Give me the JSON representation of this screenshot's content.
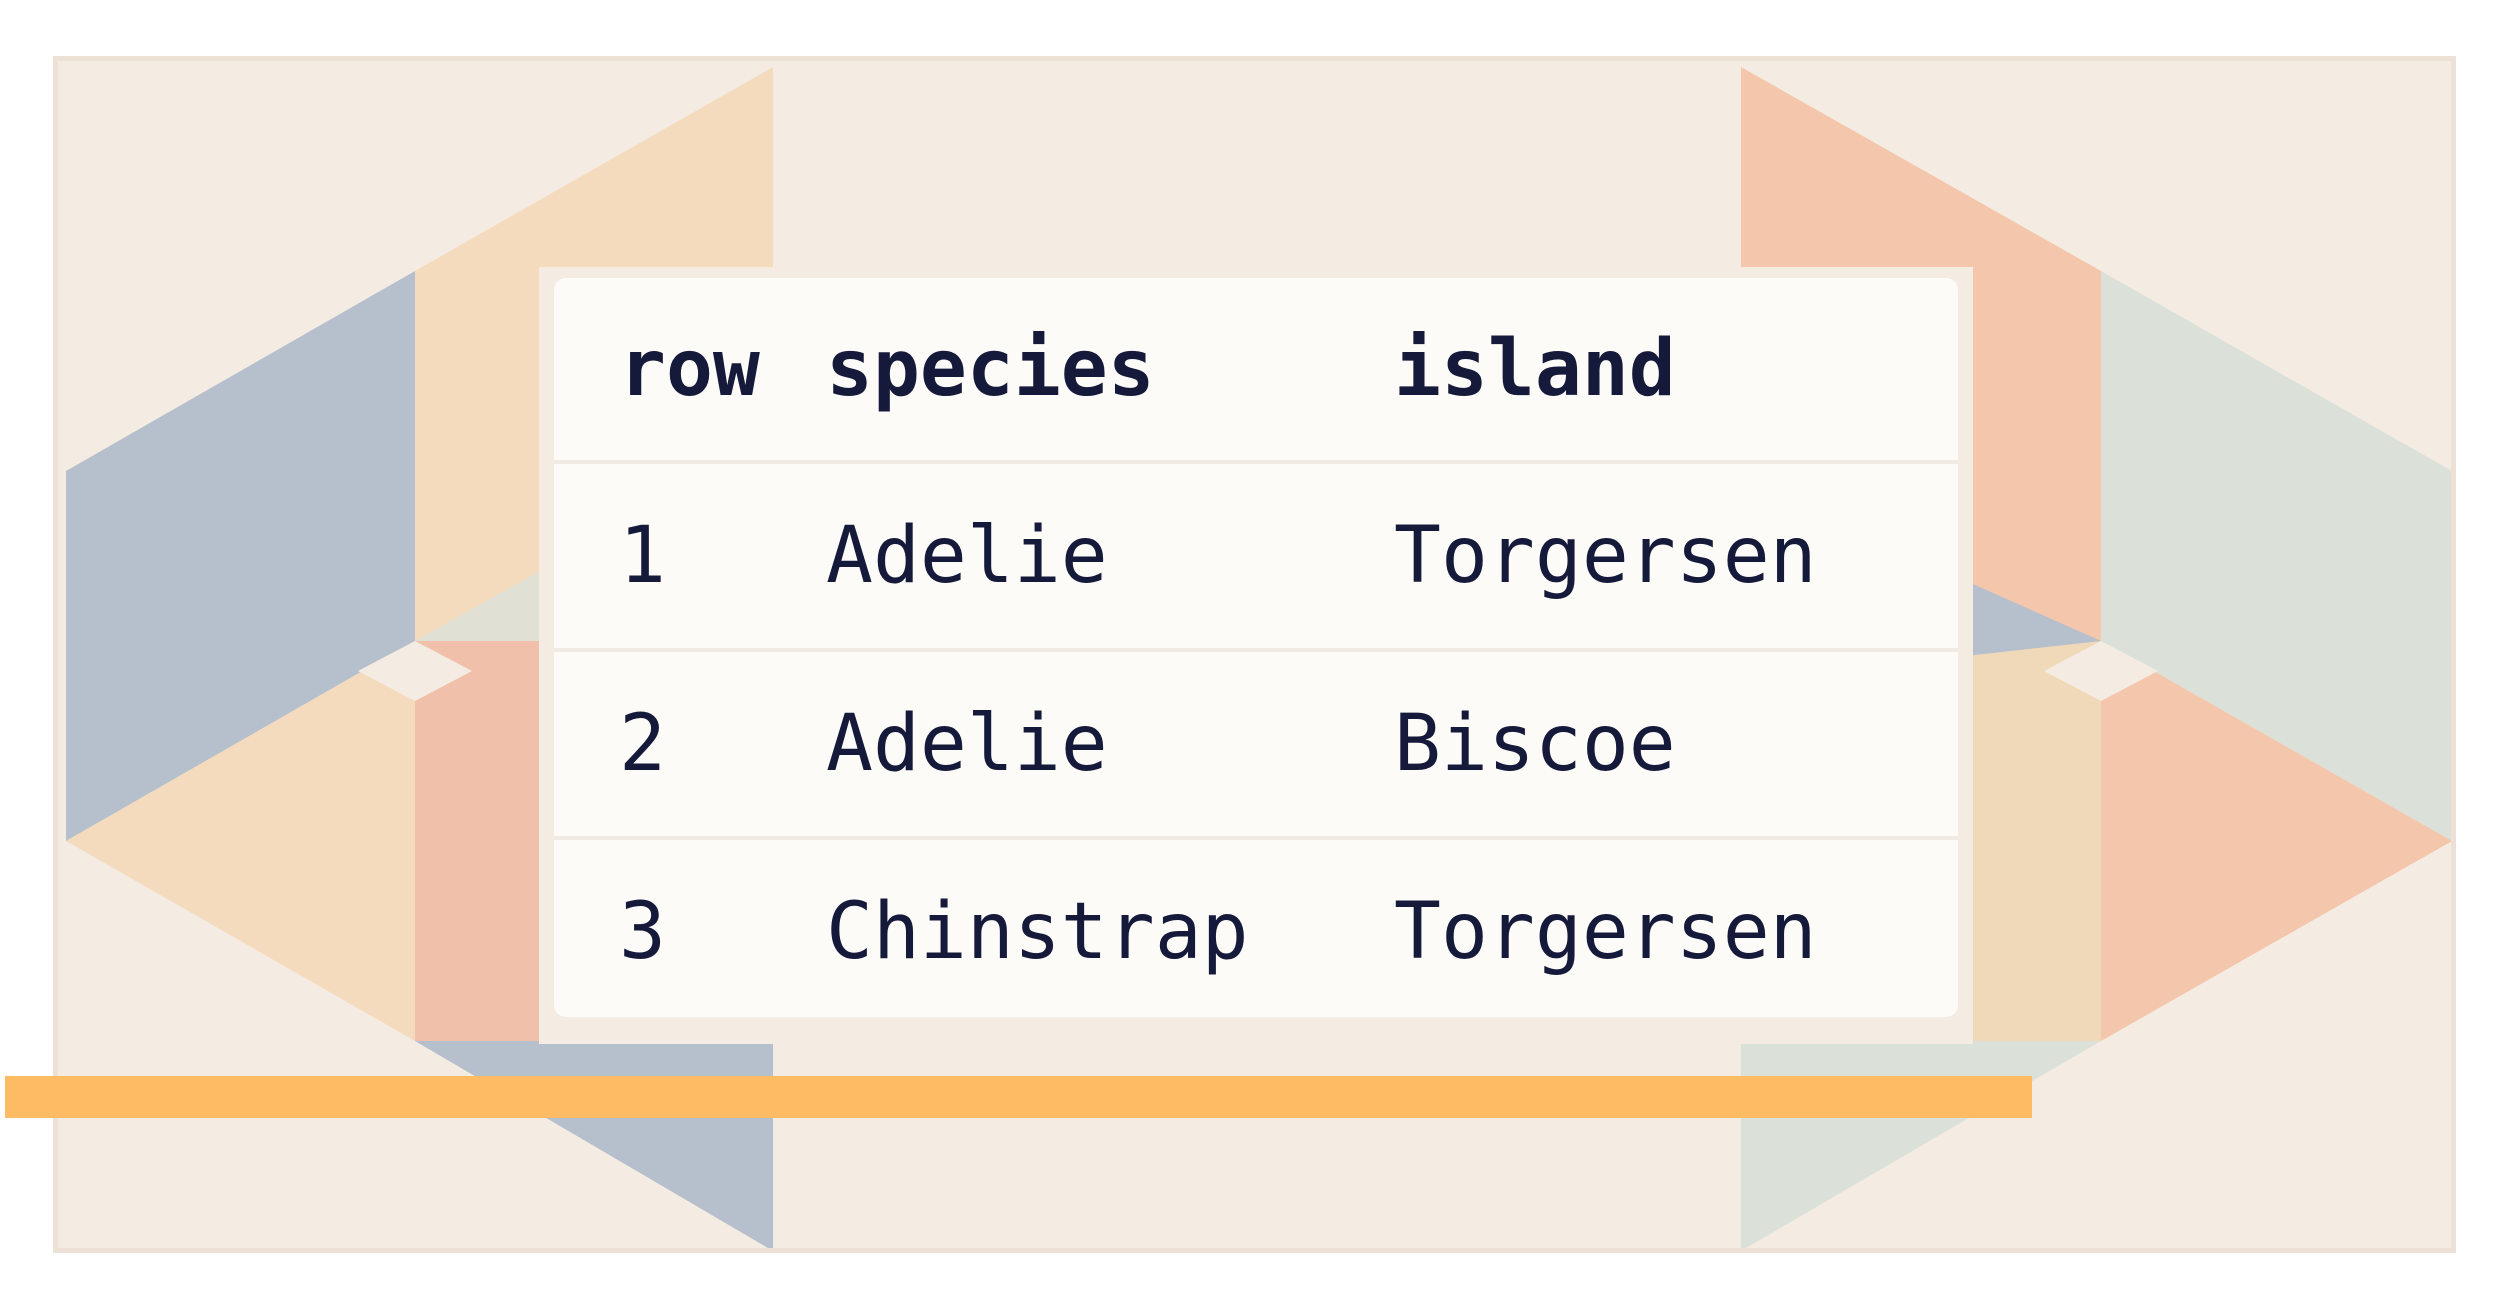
{
  "colors": {
    "frame_bg": "#f4ece2",
    "slate": "#b6bfcc",
    "peach": "#f4dbbe",
    "salmon": "#f4c6ab",
    "sage": "#dbe1d9",
    "table_bg": "#fcfbf8",
    "text": "#15193a",
    "accent_bar": "#fdbb63"
  },
  "table": {
    "columns": [
      "row",
      "species",
      "island"
    ],
    "rows": [
      [
        "1",
        "Adelie",
        "Torgersen"
      ],
      [
        "2",
        "Adelie",
        "Biscoe"
      ],
      [
        "3",
        "Chinstrap",
        "Torgersen"
      ]
    ]
  }
}
